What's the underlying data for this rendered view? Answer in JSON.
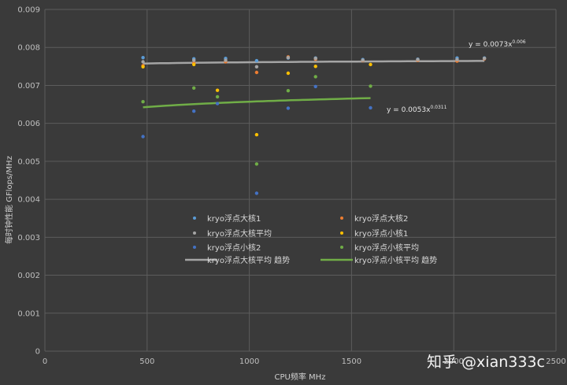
{
  "chart_data": {
    "type": "scatter",
    "xlabel": "CPU频率 MHz",
    "ylabel": "每时钟性能 GFlops/MHz",
    "xlim": [
      0,
      2500
    ],
    "ylim": [
      0,
      0.009
    ],
    "x_ticks": [
      "0",
      "500",
      "1000",
      "1500",
      "2000",
      "2500"
    ],
    "x_tick_values": [
      0,
      500,
      1000,
      1500,
      2000,
      2500
    ],
    "y_ticks": [
      "0",
      "0.001",
      "0.002",
      "0.003",
      "0.004",
      "0.005",
      "0.006",
      "0.007",
      "0.008",
      "0.009"
    ],
    "y_tick_values": [
      0,
      0.001,
      0.002,
      0.003,
      0.004,
      0.005,
      0.006,
      0.007,
      0.008,
      0.009
    ],
    "grid": true,
    "legend_position": "center",
    "series": [
      {
        "name": "kryo浮点大核1",
        "color": "#5b9bd5",
        "points": [
          [
            480,
            0.00773
          ],
          [
            729,
            0.0077
          ],
          [
            884,
            0.00771
          ],
          [
            1036,
            0.00765
          ],
          [
            1190,
            0.00772
          ],
          [
            1324,
            0.00772
          ],
          [
            1555,
            0.00768
          ],
          [
            1824,
            0.00769
          ],
          [
            2016,
            0.00772
          ],
          [
            2150,
            0.00772
          ]
        ]
      },
      {
        "name": "kryo浮点大核2",
        "color": "#ed7d31",
        "points": [
          [
            480,
            0.00752
          ],
          [
            729,
            0.00759
          ],
          [
            884,
            0.00762
          ],
          [
            1036,
            0.00734
          ],
          [
            1190,
            0.00775
          ],
          [
            1324,
            0.00769
          ],
          [
            1555,
            0.00765
          ],
          [
            1824,
            0.00766
          ],
          [
            2016,
            0.00764
          ],
          [
            2150,
            0.0077
          ]
        ]
      },
      {
        "name": "kryo浮点大核平均",
        "color": "#a5a5a5",
        "points": [
          [
            480,
            0.00762
          ],
          [
            729,
            0.00766
          ],
          [
            884,
            0.00766
          ],
          [
            1036,
            0.00749
          ],
          [
            1190,
            0.00773
          ],
          [
            1324,
            0.00771
          ],
          [
            1555,
            0.00766
          ],
          [
            1824,
            0.00768
          ],
          [
            2016,
            0.00768
          ],
          [
            2150,
            0.00771
          ]
        ]
      },
      {
        "name": "kryo浮点小核1",
        "color": "#ffc000",
        "points": [
          [
            480,
            0.00749
          ],
          [
            729,
            0.00755
          ],
          [
            844,
            0.00687
          ],
          [
            1036,
            0.0057
          ],
          [
            1190,
            0.00732
          ],
          [
            1324,
            0.0075
          ],
          [
            1593,
            0.00755
          ]
        ]
      },
      {
        "name": "kryo浮点小核2",
        "color": "#4472c4",
        "points": [
          [
            480,
            0.00565
          ],
          [
            729,
            0.00632
          ],
          [
            844,
            0.00652
          ],
          [
            1036,
            0.00416
          ],
          [
            1190,
            0.0064
          ],
          [
            1324,
            0.00697
          ],
          [
            1593,
            0.00641
          ]
        ]
      },
      {
        "name": "kryo浮点小核平均",
        "color": "#70ad47",
        "points": [
          [
            480,
            0.00657
          ],
          [
            729,
            0.00693
          ],
          [
            844,
            0.0067
          ],
          [
            1036,
            0.00493
          ],
          [
            1190,
            0.00686
          ],
          [
            1324,
            0.00723
          ],
          [
            1593,
            0.00698
          ]
        ]
      }
    ],
    "trendlines": [
      {
        "name": "kryo浮点大核平均 趋势",
        "color": "#a5a5a5",
        "coef": 0.0073,
        "exp": 0.006,
        "x_range": [
          480,
          2150
        ],
        "equation_base": "y = 0.0073x",
        "equation_exp": "0.006"
      },
      {
        "name": "kryo浮点小核平均 趋势",
        "color": "#70ad47",
        "coef": 0.0053,
        "exp": 0.0311,
        "x_range": [
          480,
          1593
        ],
        "equation_base": "y = 0.0053x",
        "equation_exp": "0.0311"
      }
    ]
  },
  "watermark": "知乎 @xian333c"
}
